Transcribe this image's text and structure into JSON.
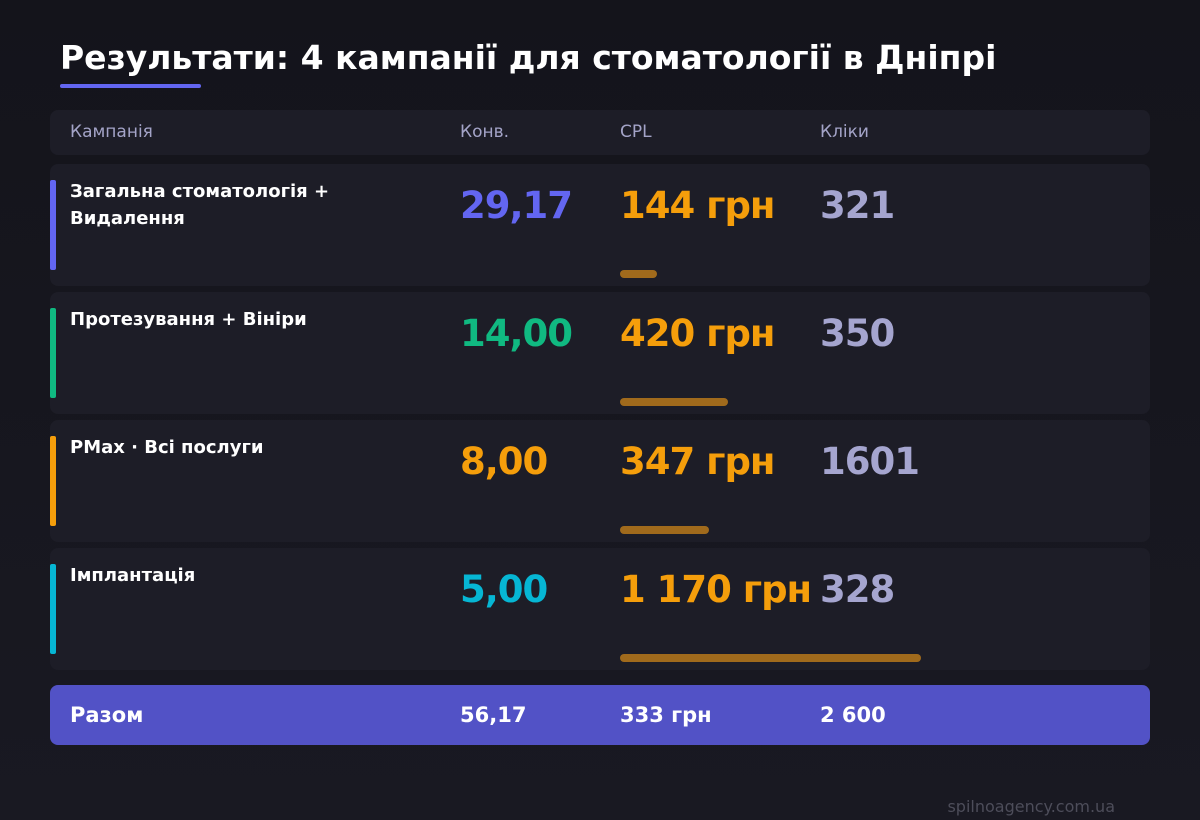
{
  "header": {
    "title": "Результати: 4 кампанії для стоматології в Дніпрі"
  },
  "table": {
    "columns": [
      "Кампанія",
      "Конв.",
      "CPL",
      "Кліки"
    ],
    "rows": [
      {
        "name": "Загальна стоматологія + Видалення",
        "conversions": "29,17",
        "cpl": {
          "value": 144,
          "label": "144 грн"
        },
        "clicks": "321",
        "color": "#6366f1"
      },
      {
        "name": "Протезування + Вініри",
        "conversions": "14,00",
        "cpl": {
          "value": 420,
          "label": "420 грн"
        },
        "clicks": "350",
        "color": "#10b981"
      },
      {
        "name": "PMax · Всі послуги",
        "conversions": "8,00",
        "cpl": {
          "value": 347,
          "label": "347 грн"
        },
        "clicks": "1601",
        "color": "#f59e0b"
      },
      {
        "name": "Імплантація",
        "conversions": "5,00",
        "cpl": {
          "value": 1170,
          "label": "1 170 грн"
        },
        "clicks": "328",
        "color": "#06b6d4"
      }
    ],
    "total": {
      "name": "Разом",
      "conversions": "56,17",
      "cpl": "333 грн",
      "clicks": "2 600"
    }
  },
  "footer": {
    "site": "spilnoagency.com.ua"
  }
}
